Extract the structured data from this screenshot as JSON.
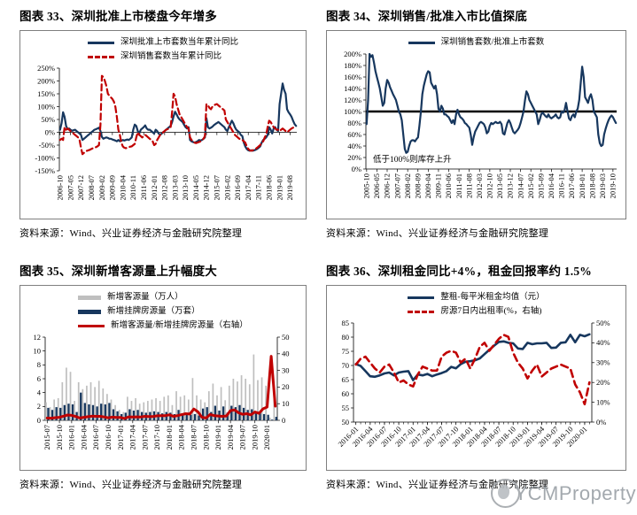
{
  "page": {
    "watermark": "YCMProperty"
  },
  "panels": [
    {
      "title": "图表 33、深圳批准上市楼盘今年增多",
      "source": "资料来源：Wind、兴业证券经济与金融研究院整理"
    },
    {
      "title": "图表 34、深圳销售/批准入市比值探底",
      "source": "资料来源：Wind、兴业证券经济与金融研究院整理"
    },
    {
      "title": "图表 35、深圳新增客源量上升幅度大",
      "source": "资料来源：Wind、兴业证券经济与金融研究院整理"
    },
    {
      "title": "图表 36、深圳租金同比+4%，租金回报率约 1.5%",
      "source": "资料来源：Wind、兴业证券经济与金融研究院整理"
    }
  ],
  "chart_data": [
    {
      "type": "line",
      "title": "深圳批准上市楼盘今年增多",
      "x_start": "2006-10",
      "x_ticks": [
        "2006-10",
        "2007-05",
        "2007-12",
        "2008-07",
        "2009-02",
        "2009-09",
        "2010-04",
        "2010-11",
        "2011-06",
        "2012-01",
        "2012-08",
        "2013-03",
        "2013-10",
        "2014-05",
        "2014-12",
        "2015-07",
        "2016-02",
        "2016-09",
        "2017-04",
        "2017-11",
        "2018-06",
        "2019-01",
        "2019-08"
      ],
      "tick_step": 7,
      "x_rot": 90,
      "left_axis": {
        "min": -150,
        "max": 250,
        "step": 50,
        "fmt": "pct"
      },
      "series": [
        {
          "name": "深圳批准上市套数当年累计同比",
          "kind": "line",
          "axis": "left",
          "color": "#17375e",
          "dash": null,
          "width": 2.2,
          "values": [
            10,
            35,
            78,
            60,
            25,
            12,
            15,
            10,
            6,
            8,
            10,
            5,
            0,
            -5,
            -10,
            -30,
            -25,
            -20,
            -15,
            -10,
            -5,
            0,
            5,
            10,
            12,
            15,
            18,
            5,
            -18,
            -25,
            -22,
            -20,
            -22,
            -25,
            -25,
            -28,
            -30,
            -32,
            -35,
            -30,
            -35,
            -33,
            -30,
            -32,
            -30,
            -28,
            -30,
            -25,
            -20,
            10,
            30,
            25,
            5,
            -5,
            10,
            15,
            20,
            27,
            15,
            10,
            10,
            5,
            0,
            -5,
            10,
            5,
            -5,
            -10,
            -5,
            0,
            5,
            10,
            15,
            20,
            25,
            40,
            62,
            80,
            70,
            58,
            50,
            45,
            40,
            30,
            20,
            15,
            20,
            -30,
            -35,
            -38,
            -40,
            -38,
            -35,
            -30,
            -32,
            -30,
            -25,
            -20,
            55,
            20,
            15,
            18,
            22,
            28,
            32,
            36,
            40,
            35,
            30,
            25,
            20,
            10,
            5,
            20,
            32,
            45,
            35,
            20,
            10,
            5,
            0,
            -10,
            -15,
            -40,
            -55,
            -65,
            -70,
            -72,
            -70,
            -72,
            -70,
            -68,
            -65,
            -60,
            -55,
            -40,
            -30,
            -25,
            -20,
            -10,
            20,
            10,
            -5,
            15,
            20,
            10,
            5,
            110,
            150,
            190,
            165,
            150,
            90,
            78,
            70,
            60,
            45,
            32,
            25
          ]
        },
        {
          "name": "深圳销售套数当年累计同比",
          "kind": "line",
          "axis": "left",
          "color": "#c00000",
          "dash": "7 4",
          "width": 2.2,
          "values": [
            -30,
            -25,
            -30,
            20,
            10,
            15,
            10,
            5,
            0,
            -5,
            -10,
            -15,
            -20,
            -30,
            -60,
            -85,
            -80,
            -75,
            -72,
            -70,
            -68,
            -65,
            -62,
            -60,
            -58,
            -55,
            -50,
            30,
            220,
            215,
            200,
            180,
            150,
            142,
            136,
            130,
            120,
            100,
            60,
            10,
            -10,
            -40,
            -55,
            -60,
            -62,
            -60,
            -58,
            -56,
            -55,
            -50,
            -45,
            -20,
            0,
            -10,
            -15,
            -20,
            -15,
            -10,
            -15,
            -20,
            -25,
            -30,
            -35,
            -50,
            -45,
            -30,
            -20,
            -10,
            -5,
            0,
            5,
            10,
            12,
            15,
            20,
            80,
            150,
            140,
            110,
            90,
            70,
            60,
            50,
            40,
            30,
            20,
            15,
            -20,
            -30,
            -35,
            -40,
            -42,
            -40,
            -38,
            -35,
            -30,
            -25,
            -15,
            110,
            105,
            95,
            90,
            100,
            105,
            108,
            110,
            105,
            100,
            95,
            90,
            85,
            50,
            40,
            30,
            20,
            10,
            0,
            -10,
            -15,
            -20,
            -25,
            -28,
            -30,
            -35,
            -40,
            -55,
            -65,
            -70,
            -72,
            -70,
            -68,
            -65,
            -60,
            -55,
            -50,
            -40,
            -35,
            -20,
            -10,
            20,
            45,
            40,
            30,
            20,
            15,
            10,
            10,
            5,
            10,
            15,
            10,
            5,
            0,
            5,
            10,
            15,
            18,
            20,
            22
          ]
        }
      ]
    },
    {
      "type": "line",
      "title": "深圳销售/批准入市比值探底",
      "x_start": "2005-10",
      "x_ticks": [
        "2005-10",
        "2006-05",
        "2006-12",
        "2007-07",
        "2008-02",
        "2008-09",
        "2009-04",
        "2009-11",
        "2010-06",
        "2011-01",
        "2011-08",
        "2012-03",
        "2012-10",
        "2013-05",
        "2013-12",
        "2014-07",
        "2015-02",
        "2015-09",
        "2016-04",
        "2016-11",
        "2017-06",
        "2018-01",
        "2018-08",
        "2019-03",
        "2019-10"
      ],
      "tick_step": 7,
      "x_rot": 90,
      "left_axis": {
        "min": 0,
        "max": 200,
        "step": 20,
        "fmt": "pct"
      },
      "hline": {
        "value": 100,
        "color": "#000000",
        "width": 2.4
      },
      "annotation": {
        "text": "低于100%则库存上升",
        "y": 12
      },
      "series": [
        {
          "name": "深圳销售套数/批准上市套数",
          "kind": "line",
          "axis": "left",
          "color": "#17375e",
          "dash": null,
          "width": 2.2,
          "values": [
            78,
            120,
            200,
            195,
            198,
            185,
            170,
            160,
            150,
            140,
            125,
            110,
            115,
            140,
            155,
            150,
            142,
            136,
            130,
            125,
            120,
            110,
            100,
            95,
            85,
            60,
            35,
            28,
            30,
            40,
            48,
            50,
            50,
            48,
            52,
            55,
            75,
            100,
            130,
            145,
            155,
            165,
            170,
            168,
            150,
            145,
            140,
            145,
            130,
            105,
            100,
            110,
            105,
            95,
            95,
            92,
            90,
            85,
            80,
            85,
            78,
            95,
            103,
            95,
            90,
            88,
            85,
            80,
            78,
            75,
            72,
            60,
            42,
            55,
            65,
            70,
            75,
            80,
            82,
            80,
            78,
            72,
            62,
            65,
            75,
            80,
            78,
            80,
            82,
            80,
            80,
            82,
            78,
            62,
            60,
            70,
            80,
            85,
            80,
            72,
            65,
            62,
            65,
            68,
            72,
            80,
            90,
            100,
            120,
            135,
            130,
            120,
            115,
            110,
            105,
            100,
            95,
            78,
            85,
            95,
            98,
            95,
            92,
            90,
            95,
            90,
            88,
            90,
            92,
            95,
            90,
            88,
            90,
            100,
            98,
            102,
            115,
            100,
            88,
            85,
            92,
            95,
            90,
            100,
            105,
            120,
            150,
            178,
            160,
            125,
            120,
            115,
            125,
            130,
            120,
            100,
            95,
            90,
            60,
            45,
            40,
            42,
            60,
            70,
            78,
            85,
            90,
            93,
            90,
            85,
            80
          ]
        }
      ]
    },
    {
      "type": "bar+line",
      "title": "深圳新增客源量上升幅度大",
      "x_start": "2015-07",
      "x_ticks": [
        "2015-07",
        "2015-10",
        "2016-01",
        "2016-04",
        "2016-07",
        "2016-10",
        "2017-01",
        "2017-04",
        "2017-07",
        "2017-10",
        "2018-01",
        "2018-04",
        "2018-07",
        "2018-10",
        "2019-01",
        "2019-04",
        "2019-07",
        "2019-10",
        "2020-01"
      ],
      "tick_step": 3,
      "x_rot": 90,
      "left_axis": {
        "min": 0,
        "max": 12,
        "step": 2,
        "fmt": "num"
      },
      "right_axis": {
        "min": 0,
        "max": 50,
        "step": 10,
        "fmt": "num"
      },
      "series": [
        {
          "name": "新增客源量（万人）",
          "kind": "bar",
          "axis": "left",
          "color": "#bfbfbf",
          "barw": 1.7,
          "offset": -2.2,
          "values": [
            2.6,
            1.9,
            3.0,
            3.2,
            5.5,
            7.6,
            7.0,
            2.8,
            5.5,
            4.5,
            5.0,
            5.5,
            4.8,
            5.7,
            4.6,
            3.8,
            3.0,
            2.2,
            1.5,
            1.2,
            3.4,
            2.8,
            3.2,
            2.4,
            2.6,
            2.8,
            3.0,
            3.2,
            2.8,
            3.4,
            3.6,
            2.2,
            4.2,
            3.4,
            3.6,
            3.0,
            6.1,
            3.6,
            3.0,
            2.6,
            4.2,
            5.3,
            3.6,
            4.8,
            2.9,
            5.0,
            6.0,
            5.6,
            6.5,
            6.0,
            5.2,
            9.5,
            5.8,
            6.2,
            5.0,
            0.4,
            4.4
          ]
        },
        {
          "name": "新增挂牌房源量（万套）",
          "kind": "bar",
          "axis": "left",
          "color": "#17375e",
          "barw": 2.3,
          "offset": 0,
          "values": [
            1.8,
            1.5,
            1.9,
            1.8,
            2.2,
            2.4,
            2.3,
            1.2,
            4.0,
            2.5,
            2.3,
            2.2,
            2.0,
            2.4,
            2.3,
            2.5,
            1.6,
            1.3,
            0.9,
            1.1,
            1.6,
            1.4,
            1.5,
            1.2,
            1.1,
            1.2,
            1.3,
            1.2,
            1.0,
            1.2,
            1.1,
            0.9,
            1.5,
            1.0,
            0.9,
            0.8,
            0.9,
            0.7,
            1.7,
            1.9,
            1.2,
            2.1,
            1.4,
            2.0,
            1.1,
            2.1,
            1.9,
            2.2,
            1.8,
            1.5,
            1.6,
            1.0,
            1.1,
            0.9,
            0.8,
            0.1,
            0.5
          ]
        },
        {
          "name": "新增客源量/新增挂牌房源量（右轴）",
          "kind": "line",
          "axis": "right",
          "color": "#c00000",
          "dash": null,
          "width": 3,
          "values": [
            1.4,
            1.3,
            1.6,
            1.8,
            2.5,
            3.2,
            3.0,
            2.3,
            1.4,
            1.8,
            2.2,
            2.5,
            2.4,
            2.4,
            2.0,
            1.5,
            1.9,
            1.7,
            1.7,
            1.1,
            2.1,
            2.0,
            2.1,
            2.0,
            2.4,
            2.3,
            2.3,
            2.7,
            2.8,
            2.8,
            3.3,
            2.4,
            2.8,
            3.4,
            4.0,
            3.8,
            6.8,
            5.1,
            1.8,
            1.4,
            3.5,
            2.8,
            2.6,
            2.4,
            2.6,
            5.8,
            6.3,
            4.5,
            3.6,
            4.0,
            3.3,
            5.0,
            4.2,
            6.9,
            8.0,
            38.5,
            8.5
          ]
        }
      ]
    },
    {
      "type": "line",
      "title": "深圳租金同比+4%，租金回报率约 1.5%",
      "x_start": "2016-01",
      "x_ticks": [
        "2016-01",
        "2016-04",
        "2016-07",
        "2016-10",
        "2017-01",
        "2017-04",
        "2017-07",
        "2017-10",
        "2018-01",
        "2018-04",
        "2018-07",
        "2018-10",
        "2019-01",
        "2019-04",
        "2019-07",
        "2019-10",
        "2020-01"
      ],
      "tick_step": 3,
      "x_rot": 45,
      "minor_ticks": true,
      "left_axis": {
        "min": 50,
        "max": 85,
        "step": 5,
        "fmt": "num"
      },
      "right_axis": {
        "min": 0,
        "max": 50,
        "step": 10,
        "fmt": "pct"
      },
      "series": [
        {
          "name": "整租-每平米租金均值（元）",
          "kind": "line",
          "axis": "left",
          "color": "#17375e",
          "dash": null,
          "width": 2.6,
          "values": [
            70.5,
            69.8,
            68.0,
            66.2,
            66.0,
            66.5,
            67.2,
            67.5,
            66.5,
            67.5,
            67.8,
            68.0,
            64.8,
            66.8,
            66.5,
            67.0,
            66.2,
            66.8,
            67.3,
            68.0,
            69.5,
            69.0,
            70.5,
            71.3,
            71.5,
            71.8,
            72.5,
            74.0,
            75.5,
            77.0,
            78.3,
            78.5,
            78.0,
            77.8,
            76.0,
            75.8,
            78.0,
            77.5,
            77.8,
            77.8,
            78.0,
            76.2,
            76.3,
            78.0,
            78.2,
            80.8,
            78.2,
            80.8,
            80.3,
            81.0
          ]
        },
        {
          "name": "房源7日内出租率(%，右轴)",
          "kind": "line",
          "axis": "right",
          "color": "#c00000",
          "dash": "8 5",
          "width": 2.6,
          "values": [
            29,
            32,
            33,
            30,
            27,
            25,
            28,
            29,
            25,
            20,
            21,
            19,
            18,
            24,
            28,
            27,
            26,
            26,
            33,
            35,
            36,
            35,
            30,
            32,
            27,
            32,
            38,
            40,
            36,
            39,
            42,
            44,
            43,
            35,
            30,
            27,
            22,
            26,
            29,
            23,
            25,
            27,
            28,
            29,
            28,
            27,
            19,
            15,
            9,
            20
          ]
        }
      ]
    }
  ]
}
